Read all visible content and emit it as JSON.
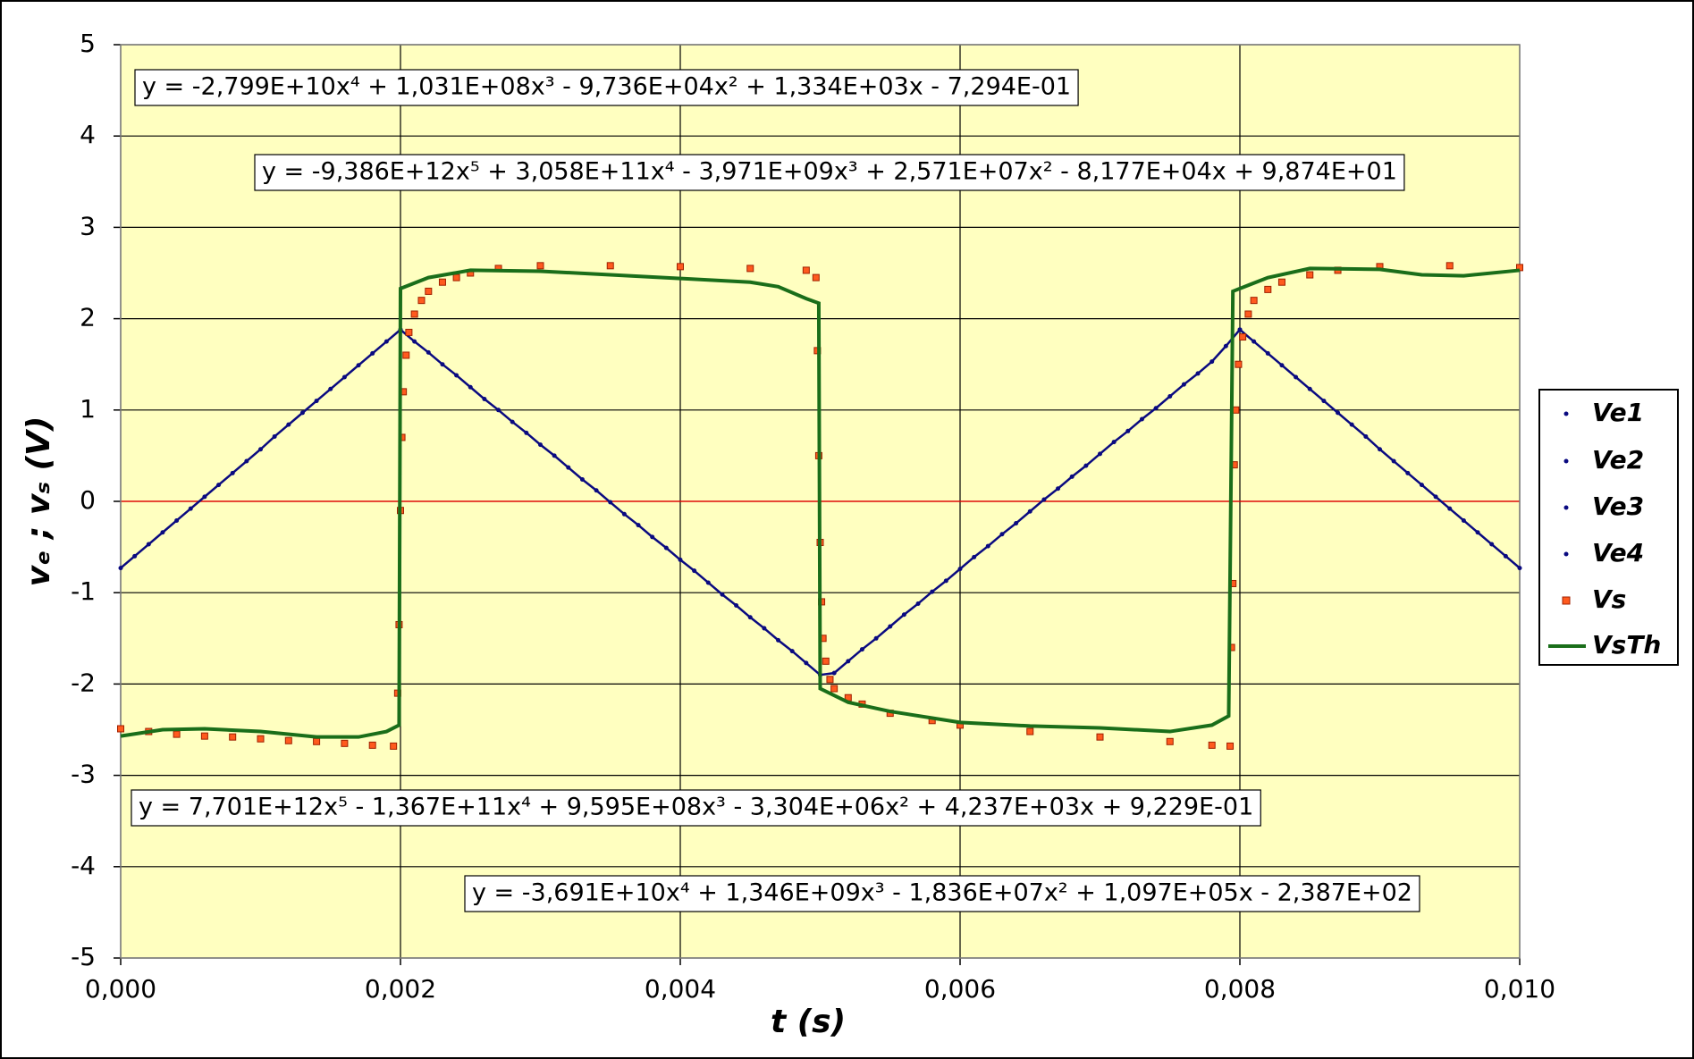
{
  "chart_data": {
    "type": "scatter",
    "x_label": "t  (s)",
    "y_label": "vₑ ; vₛ  (V)",
    "xlim": [
      0,
      0.01
    ],
    "ylim": [
      -5,
      5
    ],
    "xticks": [
      {
        "value": 0,
        "label": "0,000"
      },
      {
        "value": 0.002,
        "label": "0,002"
      },
      {
        "value": 0.004,
        "label": "0,004"
      },
      {
        "value": 0.006,
        "label": "0,006"
      },
      {
        "value": 0.008,
        "label": "0,008"
      },
      {
        "value": 0.01,
        "label": "0,010"
      }
    ],
    "yticks": [
      -5,
      -4,
      -3,
      -2,
      -1,
      0,
      1,
      2,
      3,
      4,
      5
    ],
    "grid": true,
    "zero_line_color": "#ff0000",
    "plot_background": "#ffffc0",
    "legend": "right",
    "series": [
      {
        "name": "Ve1",
        "color": "#0a0a80",
        "marker": "dot",
        "x": [
          0,
          0.0001,
          0.0002,
          0.0003,
          0.0004,
          0.0005,
          0.0006,
          0.0007,
          0.0008,
          0.0009,
          0.001,
          0.0011,
          0.0012,
          0.0013,
          0.0014,
          0.0015,
          0.0016,
          0.0017,
          0.0018,
          0.0019,
          0.002
        ],
        "values": [
          -0.73,
          -0.6,
          -0.47,
          -0.34,
          -0.21,
          -0.08,
          0.05,
          0.18,
          0.31,
          0.44,
          0.57,
          0.71,
          0.84,
          0.97,
          1.1,
          1.23,
          1.36,
          1.49,
          1.62,
          1.75,
          1.88
        ]
      },
      {
        "name": "Ve2",
        "color": "#0a0a80",
        "marker": "dot",
        "x": [
          0.002,
          0.0021,
          0.0022,
          0.0023,
          0.0024,
          0.0025,
          0.0026,
          0.0027,
          0.0028,
          0.0029,
          0.003,
          0.0031,
          0.0032,
          0.0033,
          0.0034,
          0.0035,
          0.0036,
          0.0037,
          0.0038,
          0.0039,
          0.004,
          0.0041,
          0.0042,
          0.0043,
          0.0044,
          0.0045,
          0.0046,
          0.0047,
          0.0048,
          0.0049,
          0.005
        ],
        "values": [
          1.88,
          1.75,
          1.63,
          1.5,
          1.38,
          1.25,
          1.12,
          1.0,
          0.87,
          0.75,
          0.62,
          0.5,
          0.37,
          0.24,
          0.12,
          -0.01,
          -0.14,
          -0.26,
          -0.39,
          -0.51,
          -0.64,
          -0.76,
          -0.89,
          -1.02,
          -1.14,
          -1.27,
          -1.39,
          -1.52,
          -1.64,
          -1.77,
          -1.9
        ]
      },
      {
        "name": "Ve3",
        "color": "#0a0a80",
        "marker": "dot",
        "x": [
          0.005,
          0.0051,
          0.0052,
          0.0053,
          0.0054,
          0.0055,
          0.0056,
          0.0057,
          0.0058,
          0.0059,
          0.006,
          0.0061,
          0.0062,
          0.0063,
          0.0064,
          0.0065,
          0.0066,
          0.0067,
          0.0068,
          0.0069,
          0.007,
          0.0071,
          0.0072,
          0.0073,
          0.0074,
          0.0075,
          0.0076,
          0.0077,
          0.0078,
          0.0079,
          0.008
        ],
        "values": [
          -1.9,
          -1.88,
          -1.75,
          -1.62,
          -1.5,
          -1.37,
          -1.24,
          -1.12,
          -0.99,
          -0.87,
          -0.74,
          -0.61,
          -0.49,
          -0.36,
          -0.24,
          -0.11,
          0.02,
          0.14,
          0.27,
          0.39,
          0.52,
          0.65,
          0.77,
          0.9,
          1.02,
          1.15,
          1.28,
          1.4,
          1.53,
          1.7,
          1.88
        ]
      },
      {
        "name": "Ve4",
        "color": "#0a0a80",
        "marker": "dot",
        "x": [
          0.008,
          0.0081,
          0.0082,
          0.0083,
          0.0084,
          0.0085,
          0.0086,
          0.0087,
          0.0088,
          0.0089,
          0.009,
          0.0091,
          0.0092,
          0.0093,
          0.0094,
          0.0095,
          0.0096,
          0.0097,
          0.0098,
          0.0099,
          0.01
        ],
        "values": [
          1.88,
          1.75,
          1.62,
          1.49,
          1.36,
          1.23,
          1.1,
          0.97,
          0.84,
          0.71,
          0.57,
          0.44,
          0.31,
          0.18,
          0.05,
          -0.08,
          -0.21,
          -0.34,
          -0.47,
          -0.6,
          -0.73
        ]
      },
      {
        "name": "Vs",
        "color": "#ff5a1e",
        "marker": "square",
        "x": [
          0,
          0.0002,
          0.0004,
          0.0006,
          0.0008,
          0.001,
          0.0012,
          0.0014,
          0.0016,
          0.0018,
          0.00195,
          0.00198,
          0.00199,
          0.002,
          0.00201,
          0.00202,
          0.00204,
          0.00206,
          0.0021,
          0.00215,
          0.0022,
          0.0023,
          0.0024,
          0.0025,
          0.0027,
          0.003,
          0.0035,
          0.004,
          0.0045,
          0.0049,
          0.00497,
          0.00498,
          0.00499,
          0.005,
          0.00501,
          0.00502,
          0.00504,
          0.00507,
          0.0051,
          0.0052,
          0.0053,
          0.0055,
          0.0058,
          0.006,
          0.0065,
          0.007,
          0.0075,
          0.0078,
          0.00793,
          0.00794,
          0.00795,
          0.00796,
          0.00797,
          0.00799,
          0.00802,
          0.00806,
          0.0081,
          0.0082,
          0.0083,
          0.0085,
          0.0087,
          0.009,
          0.0095,
          0.01
        ],
        "values": [
          -2.49,
          -2.52,
          -2.55,
          -2.57,
          -2.58,
          -2.6,
          -2.62,
          -2.63,
          -2.65,
          -2.67,
          -2.68,
          -2.1,
          -1.35,
          -0.1,
          0.7,
          1.2,
          1.6,
          1.85,
          2.05,
          2.2,
          2.3,
          2.4,
          2.45,
          2.5,
          2.55,
          2.58,
          2.58,
          2.57,
          2.55,
          2.53,
          2.45,
          1.65,
          0.5,
          -0.45,
          -1.1,
          -1.5,
          -1.75,
          -1.95,
          -2.05,
          -2.15,
          -2.22,
          -2.32,
          -2.4,
          -2.45,
          -2.52,
          -2.58,
          -2.63,
          -2.67,
          -2.68,
          -1.6,
          -0.9,
          0.4,
          1.0,
          1.5,
          1.8,
          2.05,
          2.2,
          2.32,
          2.4,
          2.48,
          2.53,
          2.57,
          2.58,
          2.56
        ]
      },
      {
        "name": "VsTh",
        "color": "#1a6e1a",
        "marker": "line",
        "x": [
          0,
          0.0003,
          0.0006,
          0.001,
          0.0014,
          0.0017,
          0.0019,
          0.00199,
          0.002,
          0.0022,
          0.0025,
          0.003,
          0.0035,
          0.004,
          0.0045,
          0.0047,
          0.0049,
          0.00499,
          0.005,
          0.0052,
          0.0055,
          0.006,
          0.0065,
          0.007,
          0.0075,
          0.0078,
          0.00792,
          0.00795,
          0.0082,
          0.0085,
          0.009,
          0.0093,
          0.0096,
          0.01
        ],
        "values": [
          -2.57,
          -2.5,
          -2.49,
          -2.52,
          -2.58,
          -2.58,
          -2.52,
          -2.45,
          2.33,
          2.45,
          2.53,
          2.52,
          2.48,
          2.44,
          2.4,
          2.35,
          2.22,
          2.17,
          -2.05,
          -2.2,
          -2.3,
          -2.42,
          -2.46,
          -2.48,
          -2.52,
          -2.45,
          -2.35,
          2.3,
          2.45,
          2.55,
          2.54,
          2.48,
          2.47,
          2.53
        ]
      }
    ],
    "annotations": [
      "y = -2,799E+10x⁴ + 1,031E+08x³ - 9,736E+04x² + 1,334E+03x - 7,294E-01",
      "y = -9,386E+12x⁵ + 3,058E+11x⁴ - 3,971E+09x³ + 2,571E+07x² - 8,177E+04x + 9,874E+01",
      "y = 7,701E+12x⁵ - 1,367E+11x⁴ + 9,595E+08x³ - 3,304E+06x² + 4,237E+03x + 9,229E-01",
      "y = -3,691E+10x⁴ + 1,346E+09x³ - 1,836E+07x² + 1,097E+05x - 2,387E+02"
    ]
  }
}
